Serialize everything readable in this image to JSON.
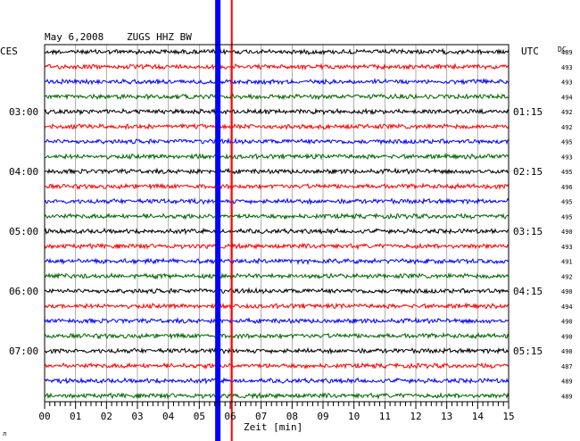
{
  "header": {
    "date": "May 6,2008",
    "station": "ZUGS HHZ BW",
    "left_tz": "CES",
    "right_tz": "UTC",
    "dc_label": "DC"
  },
  "chart_data": {
    "type": "line",
    "title": "May 6,2008   ZUGS HHZ BW",
    "xlabel": "Zeit [min]",
    "xlim": [
      0,
      15
    ],
    "x_ticks": [
      "00",
      "01",
      "02",
      "03",
      "04",
      "05",
      "06",
      "07",
      "08",
      "09",
      "10",
      "11",
      "12",
      "13",
      "14",
      "15"
    ],
    "minor_ticks_per_minute": 6,
    "grid": true,
    "trace_colors": [
      "#000000",
      "#ff0000",
      "#0000ff",
      "#006600"
    ],
    "left_time_labels": [
      {
        "trace": 4,
        "label": "03:00"
      },
      {
        "trace": 8,
        "label": "04:00"
      },
      {
        "trace": 12,
        "label": "05:00"
      },
      {
        "trace": 16,
        "label": "06:00"
      },
      {
        "trace": 20,
        "label": "07:00"
      }
    ],
    "right_time_labels": [
      {
        "trace": 4,
        "label": "01:15"
      },
      {
        "trace": 8,
        "label": "02:15"
      },
      {
        "trace": 12,
        "label": "03:15"
      },
      {
        "trace": 16,
        "label": "04:15"
      },
      {
        "trace": 20,
        "label": "05:15"
      }
    ],
    "dc_values": [
      "489",
      "493",
      "493",
      "494",
      "492",
      "492",
      "495",
      "493",
      "495",
      "496",
      "495",
      "495",
      "490",
      "493",
      "491",
      "492",
      "490",
      "494",
      "490",
      "490",
      "490",
      "487",
      "489",
      "489"
    ],
    "event_markers": [
      {
        "color": "#0000ff",
        "x_min": 5.6
      },
      {
        "color": "#ff0000",
        "x_min": 6.05
      }
    ]
  }
}
